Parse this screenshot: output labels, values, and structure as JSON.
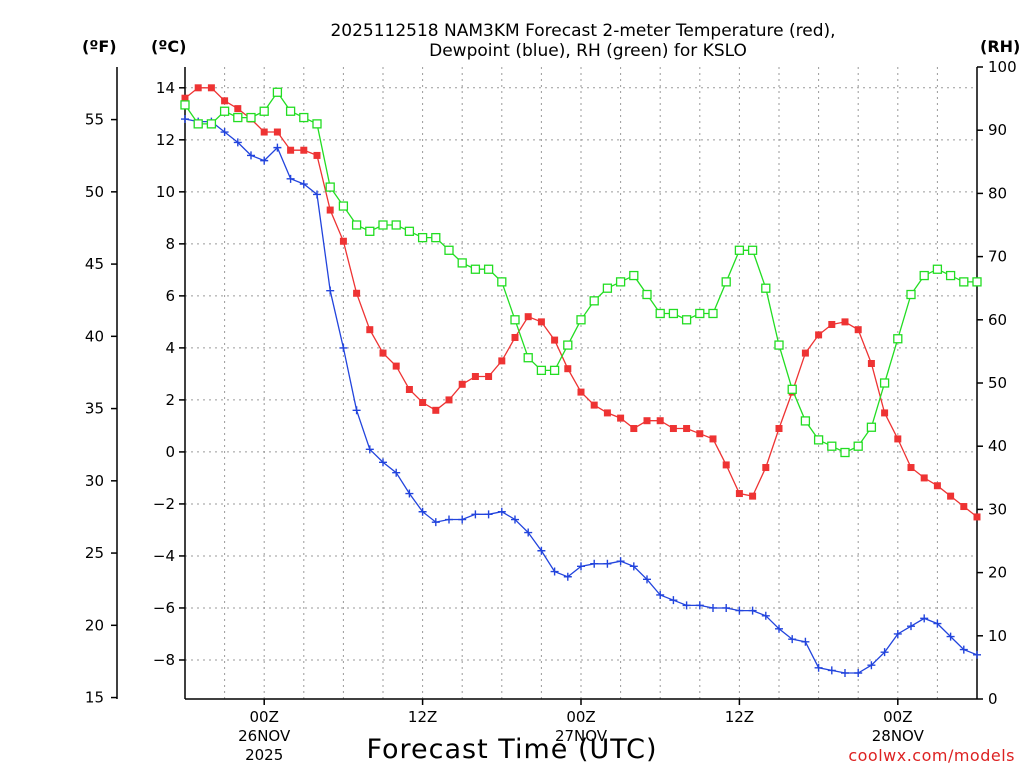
{
  "chart_data": {
    "type": "line",
    "title": "2025112518 NAM3KM Forecast 2-meter Temperature (red),",
    "subtitle": "Dewpoint (blue), RH (green) for KSLO",
    "xlabel": "Forecast Time (UTC)",
    "credit": "coolwx.com/models",
    "units": {
      "fahrenheit": "(ºF)",
      "celsius": "(ºC)",
      "rh": "(RH)"
    },
    "forecast_hours": [
      0,
      1,
      2,
      3,
      4,
      5,
      6,
      7,
      8,
      9,
      10,
      11,
      12,
      13,
      14,
      15,
      16,
      17,
      18,
      19,
      20,
      21,
      22,
      23,
      24,
      25,
      26,
      27,
      28,
      29,
      30,
      31,
      32,
      33,
      34,
      35,
      36,
      37,
      38,
      39,
      40,
      41,
      42,
      43,
      44,
      45,
      46,
      47,
      48,
      49,
      50,
      51,
      52,
      53,
      54,
      55,
      56,
      57,
      58,
      59,
      60
    ],
    "x_range": [
      0,
      60
    ],
    "x_ticks": [
      {
        "hour": 6,
        "label": "00Z",
        "date": "26NOV",
        "year": "2025"
      },
      {
        "hour": 18,
        "label": "12Z",
        "date": "",
        "year": ""
      },
      {
        "hour": 30,
        "label": "00Z",
        "date": "27NOV",
        "year": ""
      },
      {
        "hour": 42,
        "label": "12Z",
        "date": "",
        "year": ""
      },
      {
        "hour": 54,
        "label": "00Z",
        "date": "28NOV",
        "year": ""
      }
    ],
    "y_celsius": {
      "range": [
        -9.5,
        14.8
      ],
      "ticks": [
        14,
        12,
        10,
        8,
        6,
        4,
        2,
        0,
        -2,
        -4,
        -6,
        -8
      ]
    },
    "y_fahrenheit": {
      "ticks": [
        55,
        50,
        45,
        40,
        35,
        30,
        25,
        20,
        15
      ]
    },
    "y_rh": {
      "range": [
        0,
        100
      ],
      "ticks": [
        100,
        90,
        80,
        70,
        60,
        50,
        40,
        30,
        20,
        10,
        0
      ]
    },
    "series": [
      {
        "name": "Temperature",
        "axis": "celsius",
        "color": "#ee3333",
        "marker": "filled-square",
        "values": [
          13.6,
          14.0,
          14.0,
          13.5,
          13.2,
          12.8,
          12.3,
          12.3,
          11.6,
          11.6,
          11.4,
          9.3,
          8.1,
          6.1,
          4.7,
          3.8,
          3.3,
          2.4,
          1.9,
          1.6,
          2.0,
          2.6,
          2.9,
          2.9,
          3.5,
          4.4,
          5.2,
          5.0,
          4.3,
          3.2,
          2.3,
          1.8,
          1.5,
          1.3,
          0.9,
          1.2,
          1.2,
          0.9,
          0.9,
          0.7,
          0.5,
          -0.5,
          -1.6,
          -1.7,
          -0.6,
          0.9,
          2.3,
          3.8,
          4.5,
          4.9,
          5.0,
          4.7,
          3.4,
          1.5,
          0.5,
          -0.6,
          -1.0,
          -1.3,
          -1.7,
          -2.1,
          -2.5
        ]
      },
      {
        "name": "Dewpoint",
        "axis": "celsius",
        "color": "#2244dd",
        "marker": "plus",
        "values": [
          12.8,
          12.7,
          12.7,
          12.3,
          11.9,
          11.4,
          11.2,
          11.7,
          10.5,
          10.3,
          9.9,
          6.2,
          4.0,
          1.6,
          0.1,
          -0.4,
          -0.8,
          -1.6,
          -2.3,
          -2.7,
          -2.6,
          -2.6,
          -2.4,
          -2.4,
          -2.3,
          -2.6,
          -3.1,
          -3.8,
          -4.6,
          -4.8,
          -4.4,
          -4.3,
          -4.3,
          -4.2,
          -4.4,
          -4.9,
          -5.5,
          -5.7,
          -5.9,
          -5.9,
          -6.0,
          -6.0,
          -6.1,
          -6.1,
          -6.3,
          -6.8,
          -7.2,
          -7.3,
          -8.3,
          -8.4,
          -8.5,
          -8.5,
          -8.2,
          -7.7,
          -7.0,
          -6.7,
          -6.4,
          -6.6,
          -7.1,
          -7.6,
          -7.8
        ]
      },
      {
        "name": "RH",
        "axis": "rh",
        "color": "#22dd22",
        "marker": "open-square",
        "values": [
          94,
          91,
          91,
          93,
          92,
          92,
          93,
          96,
          93,
          92,
          91,
          81,
          78,
          75,
          74,
          75,
          75,
          74,
          73,
          73,
          71,
          69,
          68,
          68,
          66,
          60,
          54,
          52,
          52,
          56,
          60,
          63,
          65,
          66,
          67,
          64,
          61,
          61,
          60,
          61,
          61,
          66,
          71,
          71,
          65,
          56,
          49,
          44,
          41,
          40,
          39,
          40,
          43,
          50,
          57,
          64,
          67,
          68,
          67,
          66,
          66
        ]
      }
    ]
  }
}
